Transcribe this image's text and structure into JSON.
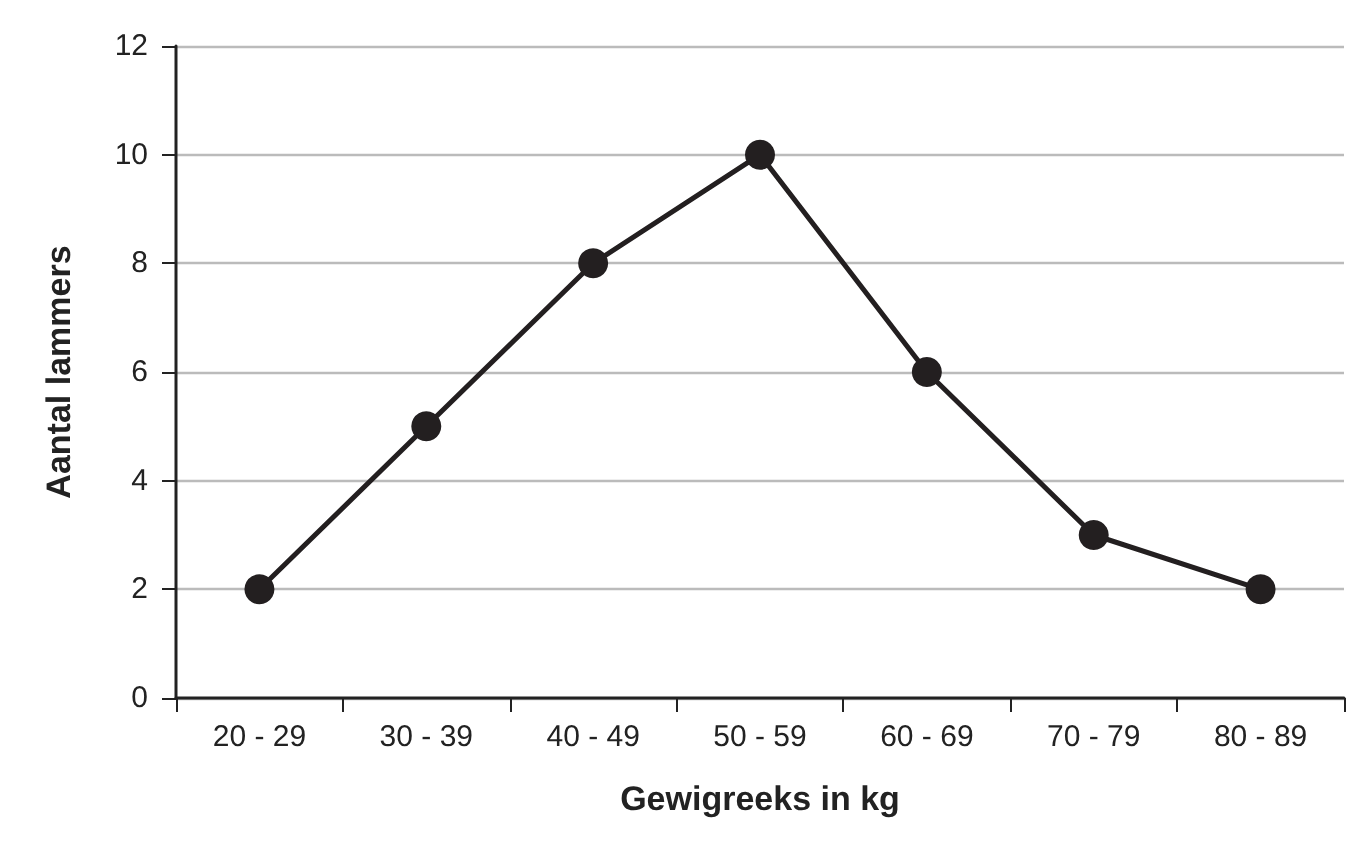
{
  "chart_data": {
    "type": "line",
    "xlabel": "Gewigreeks in kg",
    "ylabel": "Aantal lammers",
    "categories": [
      "20 - 29",
      "30 - 39",
      "40 - 49",
      "50 - 59",
      "60 - 69",
      "70 - 79",
      "80 - 89"
    ],
    "values": [
      2,
      5,
      8,
      10,
      6,
      3,
      2
    ],
    "color": "#231f20",
    "ylim": [
      0,
      12
    ],
    "yticks": [
      0,
      2,
      4,
      6,
      8,
      10,
      12
    ],
    "grid": "y",
    "marker": "circle",
    "line_style": "solid"
  }
}
